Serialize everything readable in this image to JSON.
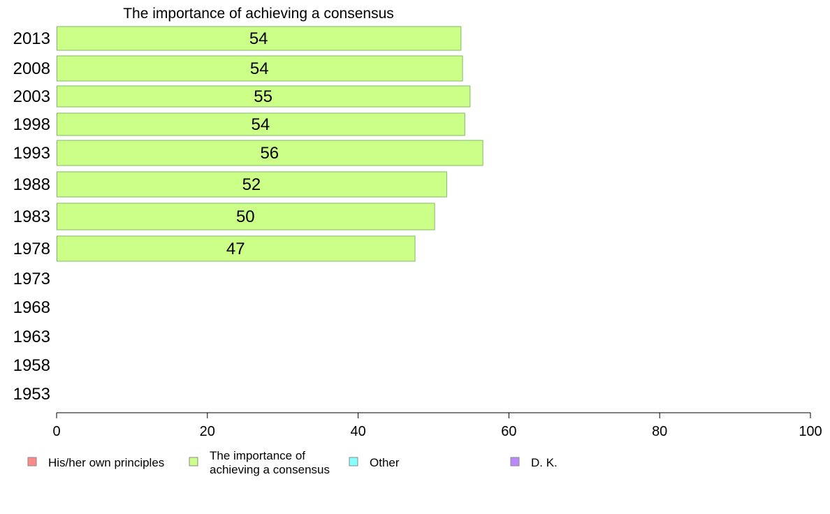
{
  "chart_data": {
    "type": "bar",
    "orientation": "horizontal",
    "title": "The importance of achieving a consensus",
    "categories": [
      "2013",
      "2008",
      "2003",
      "1998",
      "1993",
      "1988",
      "1983",
      "1978",
      "1973",
      "1968",
      "1963",
      "1958",
      "1953"
    ],
    "series": [
      {
        "name": "The importance of achieving a consensus",
        "color": "#ccff88",
        "values": [
          53.6,
          53.8,
          54.8,
          54.1,
          56.5,
          51.7,
          50.1,
          47.5,
          null,
          null,
          null,
          null,
          null
        ],
        "labels": [
          "54",
          "54",
          "55",
          "54",
          "56",
          "52",
          "50",
          "47",
          "",
          "",
          "",
          "",
          ""
        ]
      }
    ],
    "xlim": [
      0,
      100
    ],
    "xticks": [
      "0",
      "20",
      "40",
      "60",
      "80",
      "100"
    ],
    "grid": false,
    "legend": {
      "placement": "bottom",
      "items": [
        {
          "label_lines": [
            "His/her own principles"
          ],
          "color": "#ff8888"
        },
        {
          "label_lines": [
            "The importance of",
            "achieving a consensus"
          ],
          "color": "#ccff88"
        },
        {
          "label_lines": [
            "Other"
          ],
          "color": "#88ffff"
        },
        {
          "label_lines": [
            "D. K."
          ],
          "color": "#bb88ff"
        }
      ]
    }
  }
}
